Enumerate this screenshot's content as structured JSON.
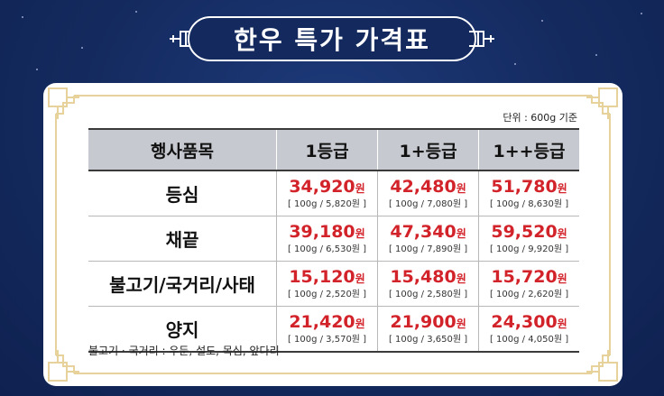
{
  "title": "한우 특가 가격표",
  "unit_note": "단위 : 600g 기준",
  "table": {
    "headers": [
      "행사품목",
      "1등급",
      "1+등급",
      "1++등급"
    ],
    "rows": [
      {
        "item": "등심",
        "prices": [
          {
            "price": "34,920",
            "won": "원",
            "sub": "[ 100g / 5,820원 ]"
          },
          {
            "price": "42,480",
            "won": "원",
            "sub": "[ 100g / 7,080원 ]"
          },
          {
            "price": "51,780",
            "won": "원",
            "sub": "[ 100g / 8,630원 ]"
          }
        ]
      },
      {
        "item": "채끝",
        "prices": [
          {
            "price": "39,180",
            "won": "원",
            "sub": "[ 100g / 6,530원 ]"
          },
          {
            "price": "47,340",
            "won": "원",
            "sub": "[ 100g / 7,890원 ]"
          },
          {
            "price": "59,520",
            "won": "원",
            "sub": "[ 100g / 9,920원 ]"
          }
        ]
      },
      {
        "item": "불고기/국거리/사태",
        "prices": [
          {
            "price": "15,120",
            "won": "원",
            "sub": "[ 100g / 2,520원 ]"
          },
          {
            "price": "15,480",
            "won": "원",
            "sub": "[ 100g / 2,580원 ]"
          },
          {
            "price": "15,720",
            "won": "원",
            "sub": "[ 100g / 2,620원 ]"
          }
        ]
      },
      {
        "item": "양지",
        "prices": [
          {
            "price": "21,420",
            "won": "원",
            "sub": "[ 100g / 3,570원 ]"
          },
          {
            "price": "21,900",
            "won": "원",
            "sub": "[ 100g / 3,650원 ]"
          },
          {
            "price": "24,300",
            "won": "원",
            "sub": "[ 100g / 4,050원 ]"
          }
        ]
      }
    ]
  },
  "footnote": "불고기 · 국거리 : 우둔, 설도, 목심, 앞다리",
  "colors": {
    "background": "#142a5e",
    "price_red": "#d3232a",
    "frame_gold": "#e6d29a",
    "header_gray": "#c6c9cf"
  }
}
